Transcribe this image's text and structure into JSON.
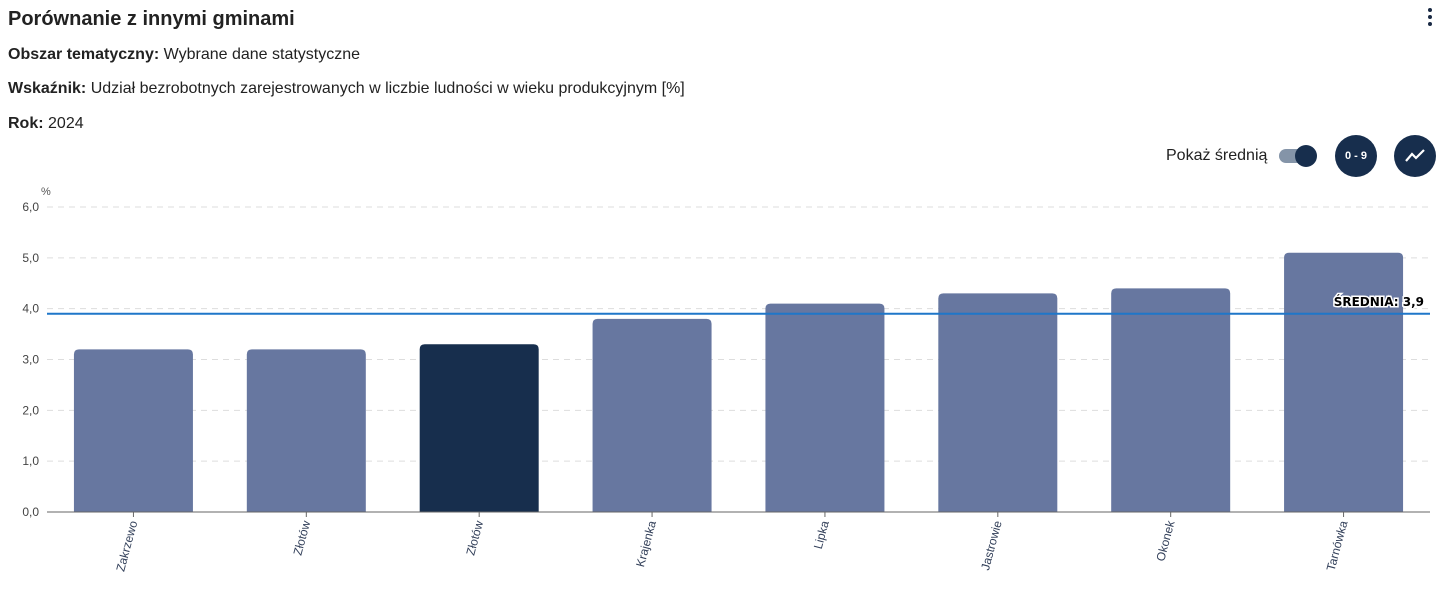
{
  "header": {
    "title": "Porównanie z innymi gminami",
    "area_label": "Obszar tematyczny:",
    "area_value": "Wybrane dane statystyczne",
    "indicator_label": "Wskaźnik:",
    "indicator_value": "Udział bezrobotnych zarejestrowanych w liczbie ludności w wieku produkcyjnym [%]",
    "year_label": "Rok:",
    "year_value": "2024"
  },
  "controls": {
    "show_average_label": "Pokaż średnią",
    "show_average_on": true,
    "range_button": "0 - 9"
  },
  "colors": {
    "bar": "#6777a0",
    "highlight": "#172e4d",
    "avg_line": "#1f77c9"
  },
  "chart_data": {
    "type": "bar",
    "ylabel": "%",
    "ylim": [
      0,
      6
    ],
    "yticks": [
      "0,0",
      "1,0",
      "2,0",
      "3,0",
      "4,0",
      "5,0",
      "6,0"
    ],
    "categories": [
      "Zakrzewo",
      "Złotów",
      "Złotów",
      "Krajenka",
      "Lipka",
      "Jastrowie",
      "Okonek",
      "Tarnówka"
    ],
    "values": [
      3.2,
      3.2,
      3.3,
      3.8,
      4.1,
      4.3,
      4.4,
      5.1
    ],
    "highlight_index": 2,
    "average": 3.9,
    "average_label": "ŚREDNIA: 3,9",
    "grid": true
  }
}
